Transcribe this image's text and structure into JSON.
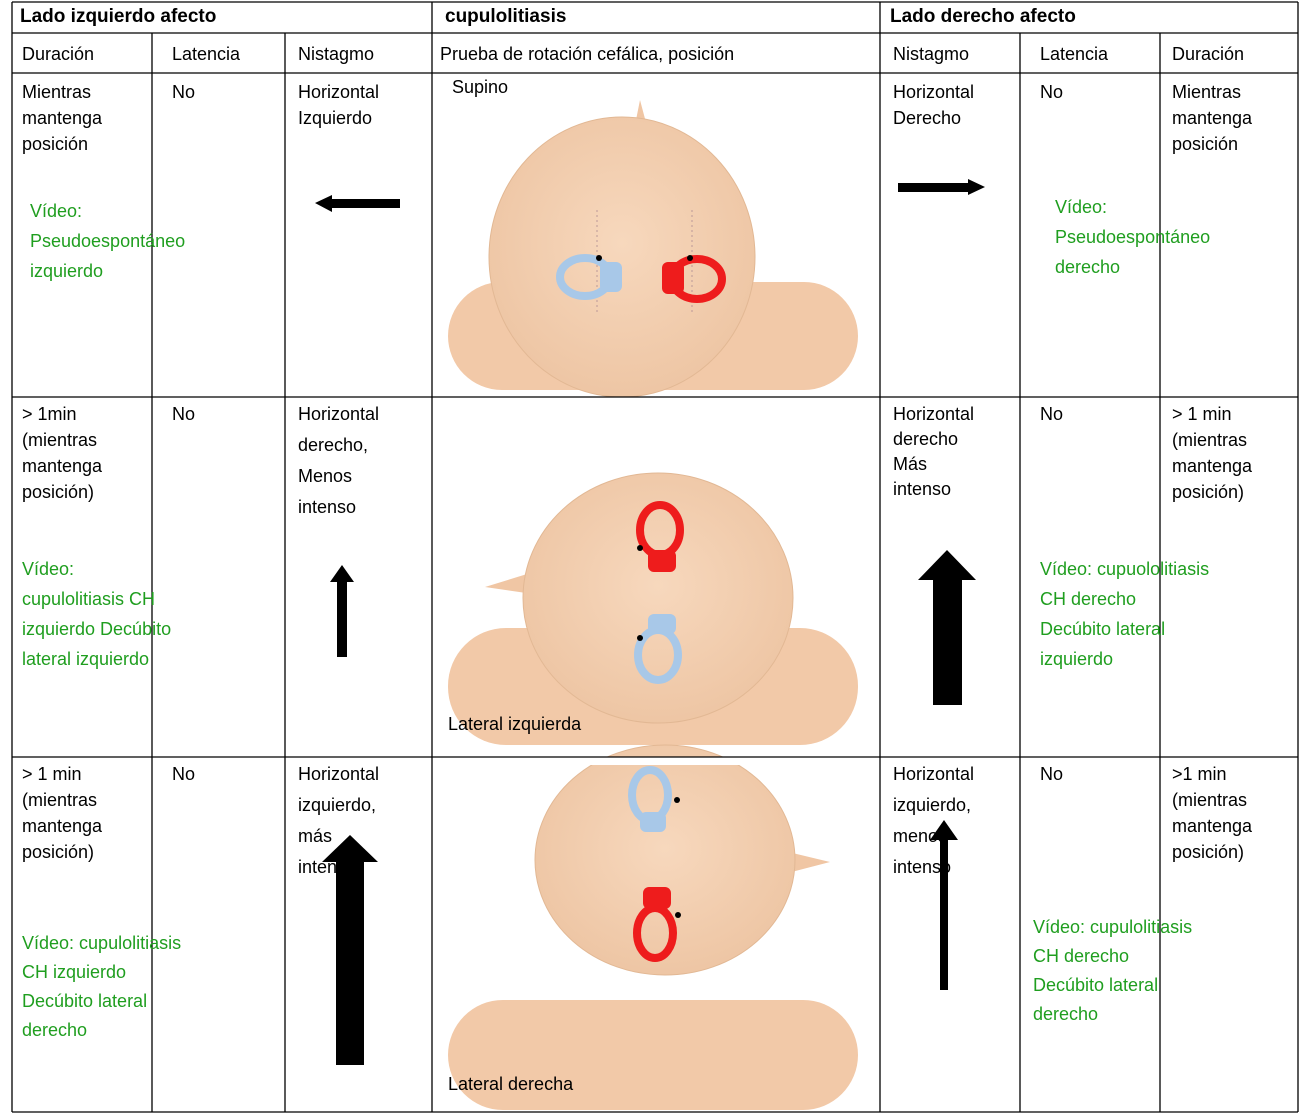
{
  "header": {
    "left": "Lado izquierdo afecto",
    "center": "cupulolitiasis",
    "right": "Lado derecho afecto"
  },
  "columns": [
    "Duración",
    "Latencia",
    "Nistagmo",
    "Prueba de rotación cefálica, posición",
    "Nistagmo",
    "Latencia",
    "Duración"
  ],
  "rows": [
    {
      "left_duration": [
        "Mientras",
        "mantenga",
        "posición"
      ],
      "left_latency": "No",
      "left_nystagmus": [
        "Horizontal",
        "Izquierdo"
      ],
      "position": "Supino",
      "right_nystagmus": [
        "Horizontal",
        "Derecho"
      ],
      "right_latency": "No",
      "right_duration": [
        "Mientras",
        "mantenga",
        "posición"
      ],
      "left_video": [
        "Vídeo:",
        "Pseudoespontáneo",
        "izquierdo"
      ],
      "right_video": [
        "Vídeo:",
        "Pseudoespontáneo",
        "derecho"
      ]
    },
    {
      "left_duration": [
        "> 1min",
        "(mientras",
        "mantenga",
        "posición)"
      ],
      "left_latency": "No",
      "left_nystagmus": [
        "Horizontal",
        "derecho,",
        "Menos",
        "intenso"
      ],
      "position": "Lateral izquierda",
      "right_nystagmus": [
        "Horizontal",
        "derecho",
        "Más",
        "intenso"
      ],
      "right_latency": "No",
      "right_duration": [
        "> 1 min",
        "(mientras",
        "mantenga",
        "posición)"
      ],
      "left_video": [
        "Vídeo:",
        "cupulolitiasis CH",
        "izquierdo Decúbito",
        "lateral izquierdo"
      ],
      "right_video": [
        "Vídeo: cupuololitiasis",
        "CH derecho",
        "Decúbito lateral",
        "izquierdo"
      ]
    },
    {
      "left_duration": [
        "> 1 min",
        "(mientras",
        "mantenga",
        "posición)"
      ],
      "left_latency": "No",
      "left_nystagmus": [
        "Horizontal",
        "izquierdo,",
        "más",
        "intenso"
      ],
      "position": "Lateral derecha",
      "right_nystagmus": [
        "Horizontal",
        "izquierdo,",
        "menos",
        "intenso"
      ],
      "right_latency": "No",
      "right_duration": [
        ">1 min",
        "(mientras",
        "mantenga",
        "posición)"
      ],
      "left_video": [
        "Vídeo: cupulolitiasis",
        "CH izquierdo",
        "Decúbito lateral",
        "derecho"
      ],
      "right_video": [
        "Vídeo: cupulolitiasis",
        "CH derecho",
        "Decúbito lateral",
        "derecho"
      ]
    }
  ]
}
